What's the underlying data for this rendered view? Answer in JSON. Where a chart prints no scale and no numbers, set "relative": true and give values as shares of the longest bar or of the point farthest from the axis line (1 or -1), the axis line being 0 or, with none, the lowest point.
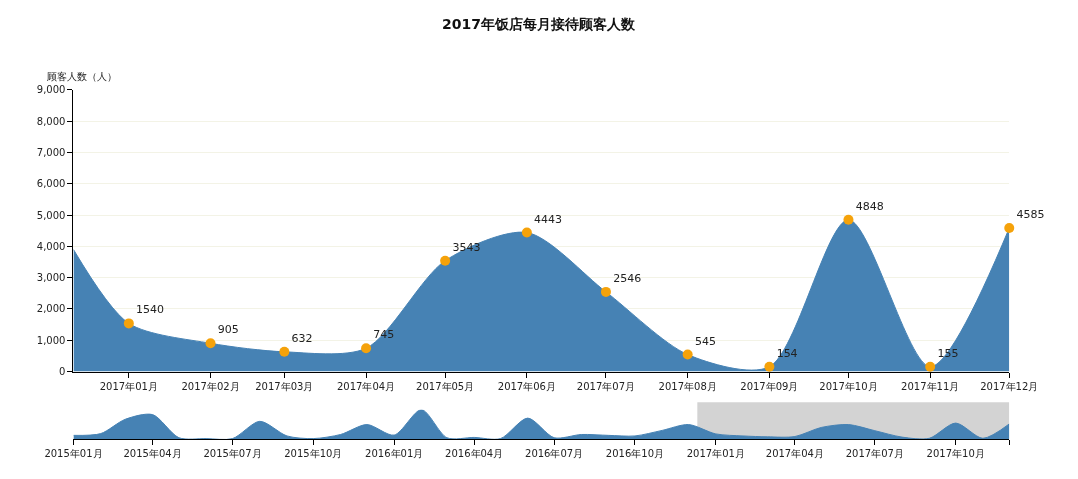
{
  "chart_data": [
    {
      "type": "area",
      "title": "2017年饭店每月接待顾客人数",
      "ylabel": "顾客人数（人）",
      "grid": "y",
      "xlim": [
        "2016-12-11",
        "2017-12-01"
      ],
      "xticks": [
        {
          "value": "2017-01",
          "label": "2017年01月"
        },
        {
          "value": "2017-02",
          "label": "2017年02月"
        },
        {
          "value": "2017-03",
          "label": "2017年03月"
        },
        {
          "value": "2017-04",
          "label": "2017年04月"
        },
        {
          "value": "2017-05",
          "label": "2017年05月"
        },
        {
          "value": "2017-06",
          "label": "2017年06月"
        },
        {
          "value": "2017-07",
          "label": "2017年07月"
        },
        {
          "value": "2017-08",
          "label": "2017年08月"
        },
        {
          "value": "2017-09",
          "label": "2017年09月"
        },
        {
          "value": "2017-10",
          "label": "2017年10月"
        },
        {
          "value": "2017-11",
          "label": "2017年11月"
        },
        {
          "value": "2017-12",
          "label": "2017年12月"
        }
      ],
      "ylim": [
        0,
        9000
      ],
      "yticks": [
        0,
        {
          "value": 1000,
          "label": "1,000"
        },
        {
          "value": 2000,
          "label": "2,000"
        },
        {
          "value": 3000,
          "label": "3,000"
        },
        {
          "value": 4000,
          "label": "4,000"
        },
        {
          "value": 5000,
          "label": "5,000"
        },
        {
          "value": 6000,
          "label": "6,000"
        },
        {
          "value": 7000,
          "label": "7,000"
        },
        {
          "value": 8000,
          "label": "8,000"
        },
        {
          "value": 9000,
          "label": "9,000"
        }
      ],
      "series": [
        {
          "type": "area",
          "color": "#4682b4",
          "marker": "none",
          "x": [
            "2016-12-11",
            "2017-01",
            "2017-02",
            "2017-03",
            "2017-04",
            "2017-05",
            "2017-06",
            "2017-07",
            "2017-08",
            "2017-09",
            "2017-10",
            "2017-11",
            "2017-12"
          ],
          "values": [
            3900,
            1540,
            905,
            632,
            745,
            3543,
            4443,
            2546,
            545,
            154,
            4848,
            155,
            4585
          ]
        },
        {
          "type": "scatter",
          "color": "#f5a20a",
          "marker": "circle",
          "data_labels": true,
          "x": [
            "2017-01",
            "2017-02",
            "2017-03",
            "2017-04",
            "2017-05",
            "2017-06",
            "2017-07",
            "2017-08",
            "2017-09",
            "2017-10",
            "2017-11",
            "2017-12"
          ],
          "values": [
            1540,
            905,
            632,
            745,
            3543,
            4443,
            2546,
            545,
            154,
            4848,
            155,
            4585
          ]
        }
      ]
    },
    {
      "type": "area",
      "relative": true,
      "grid": false,
      "tick_labels": "x",
      "xlim": [
        "2015-01",
        "2017-12"
      ],
      "xticks": [
        {
          "value": "2015-01",
          "label": "2015年01月"
        },
        {
          "value": "2015-04",
          "label": "2015年04月"
        },
        {
          "value": "2015-07",
          "label": "2015年07月"
        },
        {
          "value": "2015-10",
          "label": "2015年10月"
        },
        {
          "value": "2016-01",
          "label": "2016年01月"
        },
        {
          "value": "2016-04",
          "label": "2016年04月"
        },
        {
          "value": "2016-07",
          "label": "2016年07月"
        },
        {
          "value": "2016-10",
          "label": "2016年10月"
        },
        {
          "value": "2017-01",
          "label": "2017年01月"
        },
        {
          "value": "2017-04",
          "label": "2017年04月"
        },
        {
          "value": "2017-07",
          "label": "2017年07月"
        },
        {
          "value": "2017-10",
          "label": "2017年10月"
        },
        {
          "value": "2017-12",
          "label": null
        }
      ],
      "bands": [
        {
          "axis": "x",
          "from": "2016-12-11",
          "to": "2017-12",
          "color": "#d3d3d3"
        }
      ],
      "series": [
        {
          "color": "#4682b4",
          "x": [
            "2015-01",
            "2015-02",
            "2015-03",
            "2015-04",
            "2015-05",
            "2015-06",
            "2015-07",
            "2015-08",
            "2015-09",
            "2015-10",
            "2015-11",
            "2015-12",
            "2016-01",
            "2016-02",
            "2016-03",
            "2016-04",
            "2016-05",
            "2016-06",
            "2016-07",
            "2016-08",
            "2016-09",
            "2016-10",
            "2016-11",
            "2016-12",
            "2017-01",
            "2017-02",
            "2017-03",
            "2017-04",
            "2017-05",
            "2017-06",
            "2017-07",
            "2017-08",
            "2017-09",
            "2017-10",
            "2017-11",
            "2017-12"
          ],
          "values": [
            0.12,
            0.18,
            0.67,
            0.83,
            0.04,
            0.01,
            0.01,
            0.6,
            0.1,
            0.01,
            0.15,
            0.49,
            0.13,
            1.0,
            0.04,
            0.05,
            0.01,
            0.71,
            0.04,
            0.15,
            0.12,
            0.1,
            0.29,
            0.49,
            0.17,
            0.1,
            0.07,
            0.08,
            0.39,
            0.49,
            0.28,
            0.06,
            0.02,
            0.54,
            0.02,
            0.51
          ]
        }
      ]
    }
  ]
}
